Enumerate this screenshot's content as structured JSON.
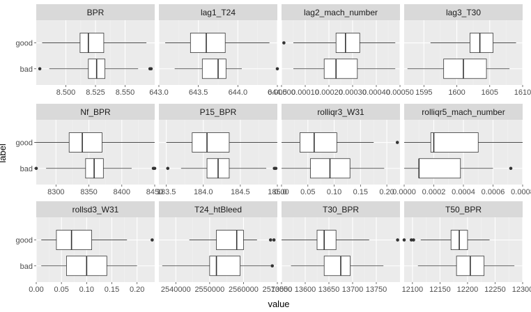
{
  "colors": {
    "panel_bg": "#ebebeb",
    "strip_bg": "#d9d9d9",
    "grid_major": "#ffffff",
    "grid_minor": "#f2f2f2",
    "box_fill": "#ffffff",
    "box_stroke": "#333333",
    "tick": "#4d4d4d"
  },
  "chart_data": {
    "type": "boxplot",
    "xlabel": "value",
    "ylabel": "label",
    "categories": [
      "good",
      "bad"
    ],
    "grid": true,
    "facet_scales": "free_x",
    "panels": [
      {
        "title": "BPR",
        "xlim": [
          8.475,
          8.575
        ],
        "ticks": [
          8.5,
          8.525,
          8.55
        ],
        "tick_labels": [
          "8.500",
          "8.525",
          "8.550"
        ],
        "boxes": {
          "good": {
            "whisker_low": 8.48,
            "q1": 8.512,
            "median": 8.519,
            "q3": 8.532,
            "whisker_high": 8.568,
            "outliers": []
          },
          "bad": {
            "whisker_low": 8.486,
            "q1": 8.519,
            "median": 8.526,
            "q3": 8.533,
            "whisker_high": 8.561,
            "outliers": [
              8.478,
              8.571,
              8.572
            ]
          }
        }
      },
      {
        "title": "lag1_T24",
        "xlim": [
          643.0,
          644.5
        ],
        "ticks": [
          643.0,
          643.5,
          644.0,
          644.5
        ],
        "tick_labels": [
          "643.0",
          "643.5",
          "644.0",
          "644.5"
        ],
        "boxes": {
          "good": {
            "whisker_low": 643.08,
            "q1": 643.4,
            "median": 643.6,
            "q3": 643.84,
            "whisker_high": 644.4,
            "outliers": []
          },
          "bad": {
            "whisker_low": 643.2,
            "q1": 643.55,
            "median": 643.75,
            "q3": 643.85,
            "whisker_high": 644.05,
            "outliers": [
              644.5
            ]
          }
        }
      },
      {
        "title": "lag2_mach_number",
        "xlim": [
          0.0,
          0.0005
        ],
        "ticks": [
          0.0,
          0.0001,
          0.0002,
          0.0003,
          0.0004,
          0.0005
        ],
        "tick_labels": [
          "0.00000",
          "0.00010",
          "0.00020",
          "0.00030",
          "0.00040",
          "0.00050"
        ],
        "boxes": {
          "good": {
            "whisker_low": 5e-05,
            "q1": 0.00023,
            "median": 0.00027,
            "q3": 0.00033,
            "whisker_high": 0.00048,
            "outliers": [
              1e-05
            ]
          },
          "bad": {
            "whisker_low": 5e-05,
            "q1": 0.00018,
            "median": 0.00023,
            "q3": 0.00032,
            "whisker_high": 0.00048,
            "outliers": []
          }
        }
      },
      {
        "title": "lag3_T30",
        "xlim": [
          1592,
          1610
        ],
        "ticks": [
          1595,
          1600,
          1605,
          1610
        ],
        "tick_labels": [
          "1595",
          "1600",
          "1605",
          "1610"
        ],
        "boxes": {
          "good": {
            "whisker_low": 1596,
            "q1": 1602,
            "median": 1603.5,
            "q3": 1605.5,
            "whisker_high": 1609,
            "outliers": []
          },
          "bad": {
            "whisker_low": 1592.5,
            "q1": 1598,
            "median": 1601,
            "q3": 1604.5,
            "whisker_high": 1608,
            "outliers": []
          }
        }
      },
      {
        "title": "Nf_BPR",
        "xlim": [
          8270,
          8450
        ],
        "ticks": [
          8300,
          8350,
          8400,
          8450
        ],
        "tick_labels": [
          "8300",
          "8350",
          "8400",
          "8450"
        ],
        "boxes": {
          "good": {
            "whisker_low": 8268,
            "q1": 8320,
            "median": 8340,
            "q3": 8370,
            "whisker_high": 8450,
            "outliers": []
          },
          "bad": {
            "whisker_low": 8285,
            "q1": 8345,
            "median": 8358,
            "q3": 8372,
            "whisker_high": 8415,
            "outliers": [
              8270,
              8448,
              8450
            ]
          }
        }
      },
      {
        "title": "P15_BPR",
        "xlim": [
          183.4,
          185.0
        ],
        "ticks": [
          183.5,
          184.0,
          184.5,
          185.0
        ],
        "tick_labels": [
          "183.5",
          "184.0",
          "184.5",
          "185.0"
        ],
        "boxes": {
          "good": {
            "whisker_low": 183.5,
            "q1": 183.85,
            "median": 184.05,
            "q3": 184.35,
            "whisker_high": 185.0,
            "outliers": []
          },
          "bad": {
            "whisker_low": 183.7,
            "q1": 184.05,
            "median": 184.2,
            "q3": 184.35,
            "whisker_high": 184.85,
            "outliers": [
              183.52,
              184.96,
              184.98
            ]
          }
        }
      },
      {
        "title": "rolliqr3_W31",
        "xlim": [
          0.0,
          0.225
        ],
        "ticks": [
          0.0,
          0.05,
          0.1,
          0.15,
          0.2
        ],
        "tick_labels": [
          "0.00",
          "0.05",
          "0.10",
          "0.15",
          "0.20"
        ],
        "boxes": {
          "good": {
            "whisker_low": 0.0,
            "q1": 0.035,
            "median": 0.062,
            "q3": 0.105,
            "whisker_high": 0.175,
            "outliers": [
              0.22
            ]
          },
          "bad": {
            "whisker_low": 0.0,
            "q1": 0.055,
            "median": 0.092,
            "q3": 0.13,
            "whisker_high": 0.195,
            "outliers": []
          }
        }
      },
      {
        "title": "rolliqr5_mach_number",
        "xlim": [
          0.0,
          0.0008
        ],
        "ticks": [
          0.0,
          0.0002,
          0.0004,
          0.0006,
          0.0008
        ],
        "tick_labels": [
          "0.0000",
          "0.0002",
          "0.0004",
          "0.0006",
          "0.0008"
        ],
        "boxes": {
          "good": {
            "whisker_low": 0.0,
            "q1": 0.00018,
            "median": 0.0002,
            "q3": 0.0005,
            "whisker_high": 0.0008,
            "outliers": []
          },
          "bad": {
            "whisker_low": 0.0,
            "q1": 0.0001,
            "median": 0.0001,
            "q3": 0.00038,
            "whisker_high": 0.0006,
            "outliers": [
              0.00072
            ]
          }
        }
      },
      {
        "title": "rollsd3_W31",
        "xlim": [
          0.0,
          0.235
        ],
        "ticks": [
          0.0,
          0.05,
          0.1,
          0.15,
          0.2
        ],
        "tick_labels": [
          "0.00",
          "0.05",
          "0.10",
          "0.15",
          "0.20"
        ],
        "boxes": {
          "good": {
            "whisker_low": 0.01,
            "q1": 0.04,
            "median": 0.07,
            "q3": 0.11,
            "whisker_high": 0.18,
            "outliers": [
              0.23
            ]
          },
          "bad": {
            "whisker_low": 0.01,
            "q1": 0.06,
            "median": 0.1,
            "q3": 0.14,
            "whisker_high": 0.2,
            "outliers": []
          }
        }
      },
      {
        "title": "T24_htBleed",
        "xlim": [
          2535000,
          2570000
        ],
        "ticks": [
          2540000,
          2550000,
          2560000,
          2570000
        ],
        "tick_labels": [
          "2540000",
          "2550000",
          "2560000",
          "2570000"
        ],
        "boxes": {
          "good": {
            "whisker_low": 2544000,
            "q1": 2552000,
            "median": 2558000,
            "q3": 2560000,
            "whisker_high": 2564000,
            "outliers": [
              2568000,
              2569000
            ]
          },
          "bad": {
            "whisker_low": 2536000,
            "q1": 2550000,
            "median": 2552000,
            "q3": 2559000,
            "whisker_high": 2568000,
            "outliers": [
              2568500
            ]
          }
        }
      },
      {
        "title": "T30_BPR",
        "xlim": [
          13550,
          13800
        ],
        "ticks": [
          13550,
          13600,
          13650,
          13700,
          13750
        ],
        "tick_labels": [
          "13550",
          "13600",
          "13650",
          "13700",
          "13750"
        ],
        "boxes": {
          "good": {
            "whisker_low": 13550,
            "q1": 13625,
            "median": 13640,
            "q3": 13665,
            "whisker_high": 13735,
            "outliers": [
              13795
            ]
          },
          "bad": {
            "whisker_low": 13570,
            "q1": 13640,
            "median": 13675,
            "q3": 13695,
            "whisker_high": 13765,
            "outliers": []
          }
        }
      },
      {
        "title": "T50_BPR",
        "xlim": [
          12085,
          12300
        ],
        "ticks": [
          12100,
          12150,
          12200,
          12250,
          12300
        ],
        "tick_labels": [
          "12100",
          "12150",
          "12200",
          "12250",
          "12300"
        ],
        "boxes": {
          "good": {
            "whisker_low": 12115,
            "q1": 12170,
            "median": 12185,
            "q3": 12200,
            "whisker_high": 12240,
            "outliers": [
              12085,
              12098,
              12102
            ]
          },
          "bad": {
            "whisker_low": 12110,
            "q1": 12180,
            "median": 12205,
            "q3": 12230,
            "whisker_high": 12285,
            "outliers": []
          }
        }
      }
    ]
  }
}
